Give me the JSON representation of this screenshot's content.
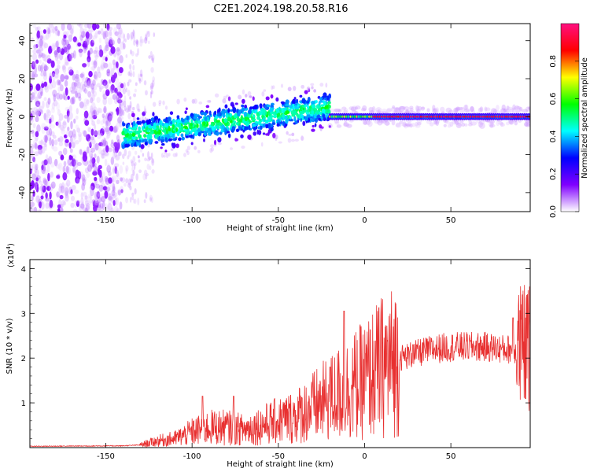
{
  "title": "C2E1.2024.198.20.58.R16",
  "chart_data": [
    {
      "type": "heatmap",
      "xlabel": "Height of straight line (km)",
      "ylabel": "Frequency (Hz)",
      "xlim": [
        -194,
        96
      ],
      "ylim": [
        -50,
        49
      ],
      "xticks": [
        -150,
        -100,
        -50,
        0,
        50
      ],
      "yticks": [
        -40,
        -20,
        0,
        20,
        40
      ],
      "colorbar": {
        "label": "Normalized spectral amplitude",
        "range": [
          0,
          1
        ],
        "ticks": [
          0.0,
          0.2,
          0.4,
          0.6,
          0.8
        ],
        "colors": [
          "#ffffff",
          "#8000ff",
          "#0000ff",
          "#00ffff",
          "#00ff00",
          "#ffff00",
          "#ff0000",
          "#ff1080"
        ]
      },
      "regions": [
        {
          "x": [
            -194,
            -140
          ],
          "freq_spread": 49,
          "amplitude": 0.1
        },
        {
          "x": [
            -140,
            -20
          ],
          "freq_center": [
            -10,
            5
          ],
          "freq_spread": 6,
          "amplitude": 0.35
        },
        {
          "x": [
            -20,
            96
          ],
          "freq_center": 0,
          "freq_spread": 2,
          "amplitude": 0.9
        }
      ]
    },
    {
      "type": "line",
      "color": "#e83030",
      "xlabel": "Height of straight line (km)",
      "ylabel": "SNR (10 * v/v)",
      "yscale_label": "(x10",
      "yscale_exp": "4",
      "yscale_close": ")",
      "xlim": [
        -194,
        96
      ],
      "ylim": [
        0,
        4.2
      ],
      "xticks": [
        -150,
        -100,
        -50,
        0,
        50
      ],
      "yticks": [
        1,
        2,
        3,
        4
      ],
      "envelope": [
        [
          -194,
          0.03
        ],
        [
          -140,
          0.04
        ],
        [
          -130,
          0.06
        ],
        [
          -120,
          0.15
        ],
        [
          -110,
          0.2
        ],
        [
          -100,
          0.35
        ],
        [
          -90,
          0.45
        ],
        [
          -80,
          0.45
        ],
        [
          -70,
          0.4
        ],
        [
          -60,
          0.5
        ],
        [
          -50,
          0.6
        ],
        [
          -40,
          0.7
        ],
        [
          -30,
          0.9
        ],
        [
          -20,
          1.1
        ],
        [
          -10,
          1.3
        ],
        [
          0,
          1.5
        ],
        [
          10,
          1.8
        ],
        [
          20,
          2.0
        ],
        [
          30,
          2.1
        ],
        [
          40,
          2.2
        ],
        [
          50,
          2.25
        ],
        [
          60,
          2.25
        ],
        [
          70,
          2.25
        ],
        [
          80,
          2.2
        ],
        [
          90,
          2.2
        ],
        [
          96,
          2.2
        ]
      ],
      "spikes": [
        [
          -94,
          1.15
        ],
        [
          -76,
          1.15
        ],
        [
          -20,
          1.8
        ],
        [
          -12,
          3.05
        ],
        [
          28,
          2.3
        ],
        [
          86,
          2.9
        ],
        [
          90,
          3.5
        ],
        [
          95,
          4.15
        ]
      ]
    }
  ]
}
